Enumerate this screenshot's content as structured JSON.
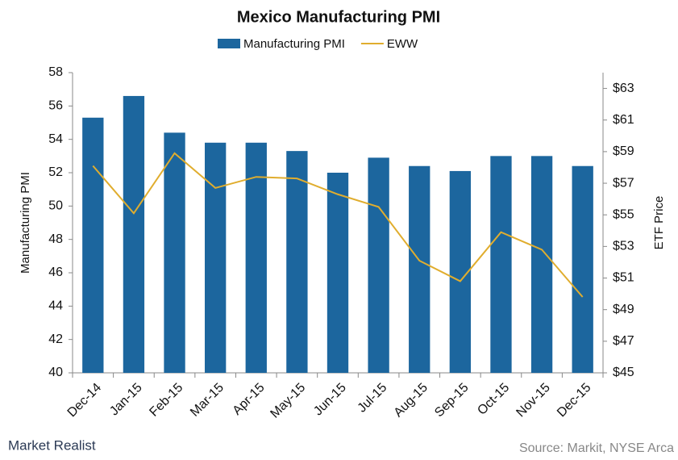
{
  "chart_data": {
    "type": "bar_line",
    "title": "Mexico  Manufacturing  PMI",
    "y_label": "Manufacturing PMI",
    "y2_label": "ETF Price",
    "source": "Source: Markit, NYSE Arca",
    "brand": "Market Realist",
    "categories": [
      "Dec-14",
      "Jan-15",
      "Feb-15",
      "Mar-15",
      "Apr-15",
      "May-15",
      "Jun-15",
      "Jul-15",
      "Aug-15",
      "Sep-15",
      "Oct-15",
      "Nov-15",
      "Dec-15"
    ],
    "series": [
      {
        "name": "Manufacturing PMI",
        "type": "bar",
        "color": "#1c669e",
        "values": [
          55.3,
          56.6,
          54.4,
          53.8,
          53.8,
          53.3,
          52.0,
          52.9,
          52.4,
          52.1,
          53.0,
          53.0,
          52.4
        ]
      },
      {
        "name": "EWW",
        "type": "line",
        "axis": "y2",
        "color": "#e0ad2e",
        "values": [
          58.1,
          55.1,
          58.9,
          56.7,
          57.4,
          57.3,
          56.3,
          55.5,
          52.1,
          50.8,
          53.9,
          52.8,
          49.8
        ]
      }
    ],
    "ylim": [
      40,
      58
    ],
    "yticks": [
      40,
      42,
      44,
      46,
      48,
      50,
      52,
      54,
      56,
      58
    ],
    "y2lim": [
      45,
      64
    ],
    "y2ticks": [
      {
        "value": 45,
        "label": "$45"
      },
      {
        "value": 47,
        "label": "$47"
      },
      {
        "value": 49,
        "label": "$49"
      },
      {
        "value": 51,
        "label": "$51"
      },
      {
        "value": 53,
        "label": "$53"
      },
      {
        "value": 55,
        "label": "$55"
      },
      {
        "value": 57,
        "label": "$57"
      },
      {
        "value": 59,
        "label": "$59"
      },
      {
        "value": 61,
        "label": "$61"
      },
      {
        "value": 63,
        "label": "$63"
      }
    ],
    "legend": "top"
  }
}
